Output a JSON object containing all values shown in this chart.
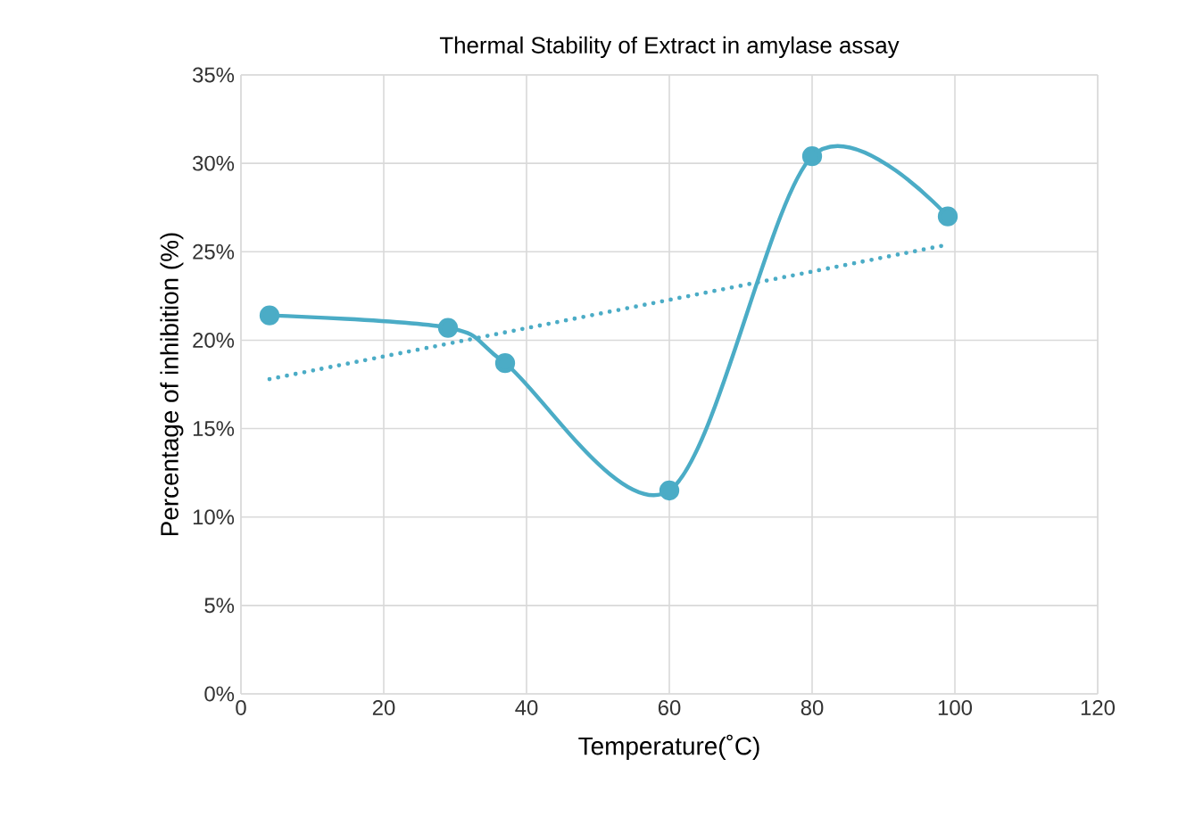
{
  "chart_data": {
    "type": "line",
    "title": "Thermal Stability of Extract in amylase assay",
    "xlabel": "Temperature(˚C)",
    "ylabel": "Percentage of inhibition  (%)",
    "x": [
      4,
      29,
      37,
      60,
      80,
      99
    ],
    "series": [
      {
        "color": "#4bacc6",
        "values": [
          21.4,
          20.7,
          18.7,
          11.5,
          30.4,
          27.0
        ],
        "marker": "circle",
        "line_style": "solid"
      },
      {
        "type": "line",
        "color": "#4bacc6",
        "x": [
          4,
          99
        ],
        "values": [
          17.8,
          25.4
        ],
        "marker": "none",
        "line_style": "dotted"
      }
    ],
    "xlim": [
      0,
      120
    ],
    "xticks": [
      0,
      20,
      40,
      60,
      80,
      100,
      120
    ],
    "ylim": [
      0,
      35
    ],
    "yticks": [
      {
        "value": 0,
        "label": "0%"
      },
      {
        "value": 5,
        "label": "5%"
      },
      {
        "value": 10,
        "label": "10%"
      },
      {
        "value": 15,
        "label": "15%"
      },
      {
        "value": 20,
        "label": "20%"
      },
      {
        "value": 25,
        "label": "25%"
      },
      {
        "value": 30,
        "label": "30%"
      },
      {
        "value": 35,
        "label": "35%"
      }
    ],
    "grid": true
  }
}
